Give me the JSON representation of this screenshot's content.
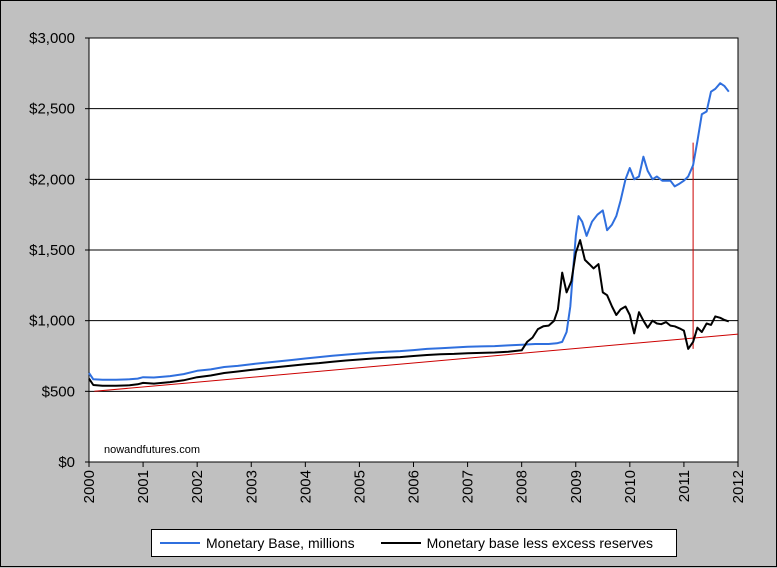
{
  "chart_data": {
    "type": "line",
    "title": "",
    "xlabel": "",
    "ylabel": "",
    "xlim": [
      2000,
      2012
    ],
    "ylim": [
      0,
      3000
    ],
    "grid": "horizontal",
    "legend_placement": "bottom",
    "y_ticks": [
      {
        "value": 0,
        "label": "$0"
      },
      {
        "value": 500,
        "label": "$500"
      },
      {
        "value": 1000,
        "label": "$1,000"
      },
      {
        "value": 1500,
        "label": "$1,500"
      },
      {
        "value": 2000,
        "label": "$2,000"
      },
      {
        "value": 2500,
        "label": "$2,500"
      },
      {
        "value": 3000,
        "label": "$3,000"
      }
    ],
    "x_ticks": [
      {
        "value": 2000,
        "label": "2000"
      },
      {
        "value": 2001,
        "label": "2001"
      },
      {
        "value": 2002,
        "label": "2002"
      },
      {
        "value": 2003,
        "label": "2003"
      },
      {
        "value": 2004,
        "label": "2004"
      },
      {
        "value": 2005,
        "label": "2005"
      },
      {
        "value": 2006,
        "label": "2006"
      },
      {
        "value": 2007,
        "label": "2007"
      },
      {
        "value": 2008,
        "label": "2008"
      },
      {
        "value": 2009,
        "label": "2009"
      },
      {
        "value": 2010,
        "label": "2010"
      },
      {
        "value": 2011,
        "label": "2011"
      },
      {
        "value": 2012,
        "label": "2012"
      }
    ],
    "series": [
      {
        "name": "Monetary Base, millions",
        "color": "#2f6fde",
        "points": [
          [
            2000.0,
            630
          ],
          [
            2000.08,
            585
          ],
          [
            2000.25,
            582
          ],
          [
            2000.5,
            582
          ],
          [
            2000.75,
            585
          ],
          [
            2000.9,
            590
          ],
          [
            2001.0,
            600
          ],
          [
            2001.2,
            598
          ],
          [
            2001.5,
            608
          ],
          [
            2001.75,
            622
          ],
          [
            2002.0,
            645
          ],
          [
            2002.25,
            655
          ],
          [
            2002.5,
            672
          ],
          [
            2002.75,
            680
          ],
          [
            2003.0,
            692
          ],
          [
            2003.25,
            702
          ],
          [
            2003.5,
            712
          ],
          [
            2003.75,
            722
          ],
          [
            2004.0,
            732
          ],
          [
            2004.25,
            742
          ],
          [
            2004.5,
            752
          ],
          [
            2004.75,
            760
          ],
          [
            2005.0,
            768
          ],
          [
            2005.25,
            775
          ],
          [
            2005.5,
            780
          ],
          [
            2005.75,
            785
          ],
          [
            2006.0,
            792
          ],
          [
            2006.25,
            800
          ],
          [
            2006.5,
            805
          ],
          [
            2006.75,
            810
          ],
          [
            2007.0,
            816
          ],
          [
            2007.25,
            818
          ],
          [
            2007.5,
            820
          ],
          [
            2007.75,
            825
          ],
          [
            2008.0,
            830
          ],
          [
            2008.25,
            835
          ],
          [
            2008.5,
            835
          ],
          [
            2008.65,
            840
          ],
          [
            2008.75,
            850
          ],
          [
            2008.83,
            920
          ],
          [
            2008.9,
            1100
          ],
          [
            2008.95,
            1350
          ],
          [
            2009.0,
            1600
          ],
          [
            2009.05,
            1740
          ],
          [
            2009.12,
            1700
          ],
          [
            2009.2,
            1600
          ],
          [
            2009.3,
            1700
          ],
          [
            2009.4,
            1750
          ],
          [
            2009.5,
            1780
          ],
          [
            2009.58,
            1640
          ],
          [
            2009.67,
            1680
          ],
          [
            2009.75,
            1740
          ],
          [
            2009.83,
            1850
          ],
          [
            2009.92,
            2000
          ],
          [
            2010.0,
            2080
          ],
          [
            2010.08,
            2000
          ],
          [
            2010.17,
            2020
          ],
          [
            2010.25,
            2160
          ],
          [
            2010.33,
            2060
          ],
          [
            2010.42,
            2000
          ],
          [
            2010.5,
            2020
          ],
          [
            2010.6,
            1990
          ],
          [
            2010.75,
            1990
          ],
          [
            2010.83,
            1950
          ],
          [
            2010.92,
            1970
          ],
          [
            2011.0,
            1990
          ],
          [
            2011.08,
            2020
          ],
          [
            2011.17,
            2100
          ],
          [
            2011.25,
            2270
          ],
          [
            2011.33,
            2460
          ],
          [
            2011.42,
            2480
          ],
          [
            2011.5,
            2620
          ],
          [
            2011.58,
            2640
          ],
          [
            2011.67,
            2680
          ],
          [
            2011.75,
            2660
          ],
          [
            2011.83,
            2620
          ]
        ]
      },
      {
        "name": "Monetary base less excess reserves",
        "color": "#000000",
        "points": [
          [
            2000.0,
            590
          ],
          [
            2000.08,
            545
          ],
          [
            2000.25,
            540
          ],
          [
            2000.5,
            540
          ],
          [
            2000.75,
            543
          ],
          [
            2000.9,
            550
          ],
          [
            2001.0,
            560
          ],
          [
            2001.2,
            555
          ],
          [
            2001.5,
            565
          ],
          [
            2001.75,
            578
          ],
          [
            2002.0,
            600
          ],
          [
            2002.25,
            612
          ],
          [
            2002.5,
            630
          ],
          [
            2002.75,
            640
          ],
          [
            2003.0,
            652
          ],
          [
            2003.25,
            662
          ],
          [
            2003.5,
            672
          ],
          [
            2003.75,
            682
          ],
          [
            2004.0,
            692
          ],
          [
            2004.25,
            700
          ],
          [
            2004.5,
            710
          ],
          [
            2004.75,
            718
          ],
          [
            2005.0,
            725
          ],
          [
            2005.25,
            732
          ],
          [
            2005.5,
            738
          ],
          [
            2005.75,
            742
          ],
          [
            2006.0,
            750
          ],
          [
            2006.25,
            757
          ],
          [
            2006.5,
            762
          ],
          [
            2006.75,
            765
          ],
          [
            2007.0,
            770
          ],
          [
            2007.25,
            772
          ],
          [
            2007.5,
            775
          ],
          [
            2007.75,
            780
          ],
          [
            2008.0,
            790
          ],
          [
            2008.1,
            850
          ],
          [
            2008.2,
            880
          ],
          [
            2008.3,
            940
          ],
          [
            2008.4,
            960
          ],
          [
            2008.5,
            965
          ],
          [
            2008.6,
            1000
          ],
          [
            2008.67,
            1080
          ],
          [
            2008.75,
            1340
          ],
          [
            2008.83,
            1200
          ],
          [
            2008.92,
            1280
          ],
          [
            2009.0,
            1480
          ],
          [
            2009.08,
            1570
          ],
          [
            2009.17,
            1430
          ],
          [
            2009.25,
            1400
          ],
          [
            2009.33,
            1370
          ],
          [
            2009.42,
            1400
          ],
          [
            2009.5,
            1200
          ],
          [
            2009.58,
            1180
          ],
          [
            2009.67,
            1100
          ],
          [
            2009.75,
            1040
          ],
          [
            2009.83,
            1080
          ],
          [
            2009.92,
            1100
          ],
          [
            2010.0,
            1040
          ],
          [
            2010.08,
            910
          ],
          [
            2010.17,
            1060
          ],
          [
            2010.25,
            1000
          ],
          [
            2010.33,
            950
          ],
          [
            2010.42,
            1000
          ],
          [
            2010.5,
            980
          ],
          [
            2010.58,
            975
          ],
          [
            2010.67,
            990
          ],
          [
            2010.75,
            965
          ],
          [
            2010.83,
            960
          ],
          [
            2010.92,
            945
          ],
          [
            2011.0,
            930
          ],
          [
            2011.08,
            800
          ],
          [
            2011.17,
            850
          ],
          [
            2011.25,
            950
          ],
          [
            2011.33,
            920
          ],
          [
            2011.42,
            980
          ],
          [
            2011.5,
            970
          ],
          [
            2011.58,
            1030
          ],
          [
            2011.67,
            1020
          ],
          [
            2011.75,
            1005
          ],
          [
            2011.83,
            995
          ]
        ]
      }
    ],
    "trend_line": {
      "color": "#cc0000",
      "points": [
        [
          2000.1,
          500
        ],
        [
          2012.0,
          905
        ]
      ]
    },
    "marker_line": {
      "color": "#cc0000",
      "points": [
        [
          2011.17,
          800
        ],
        [
          2011.17,
          2260
        ]
      ]
    },
    "watermark": "nowandfutures.com"
  }
}
